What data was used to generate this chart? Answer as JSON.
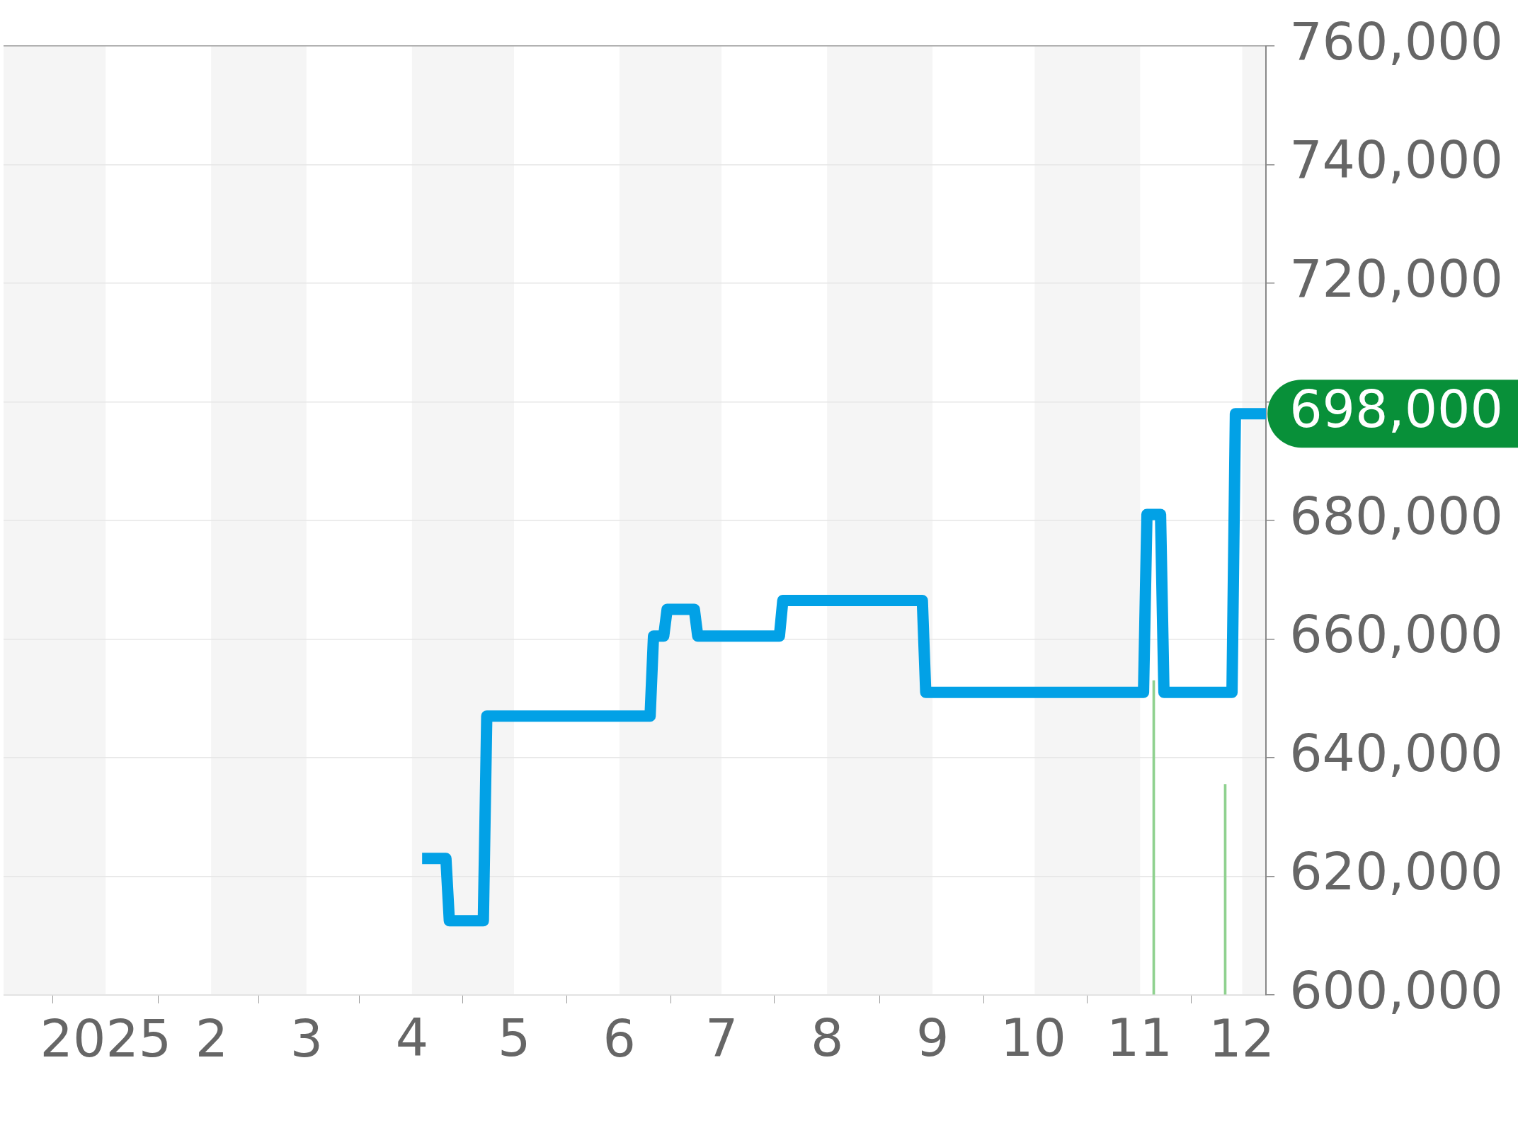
{
  "chart_data": {
    "type": "line",
    "series": [
      {
        "color": "#02a1e6",
        "x": [
          "2025-04-04",
          "2025-04-11",
          "2025-04-12",
          "2025-04-22",
          "2025-04-23",
          "2025-06-10",
          "2025-06-11",
          "2025-06-14",
          "2025-06-15",
          "2025-06-23",
          "2025-06-24",
          "2025-07-18",
          "2025-07-19",
          "2025-08-29",
          "2025-08-30",
          "2025-11-02",
          "2025-11-03",
          "2025-11-07",
          "2025-11-08",
          "2025-11-28",
          "2025-11-29",
          "2025-12-08"
        ],
        "values": [
          623000,
          623000,
          612500,
          612500,
          647000,
          647000,
          660500,
          660500,
          665000,
          665000,
          660500,
          660500,
          666500,
          666500,
          651000,
          651000,
          681000,
          681000,
          651000,
          651000,
          698000,
          698000
        ]
      },
      {
        "type": "bar",
        "color": "#8fd18f",
        "x": [
          "2025-11-05",
          "2025-11-26"
        ],
        "values": [
          653000,
          635500
        ]
      }
    ],
    "xlim": [
      "2024-12-02",
      "2025-12-08"
    ],
    "xticks": [
      {
        "value": "2025-01-01",
        "label": "2025"
      },
      {
        "value": "2025-02-01",
        "label": "2"
      },
      {
        "value": "2025-03-01",
        "label": "3"
      },
      {
        "value": "2025-04-01",
        "label": "4"
      },
      {
        "value": "2025-05-01",
        "label": "5"
      },
      {
        "value": "2025-06-01",
        "label": "6"
      },
      {
        "value": "2025-07-01",
        "label": "7"
      },
      {
        "value": "2025-08-01",
        "label": "8"
      },
      {
        "value": "2025-09-01",
        "label": "9"
      },
      {
        "value": "2025-10-01",
        "label": "10"
      },
      {
        "value": "2025-11-01",
        "label": "11"
      },
      {
        "value": "2025-12-01",
        "label": "12"
      }
    ],
    "ylim": [
      600000,
      760000
    ],
    "yticks": [
      {
        "value": 600000,
        "label": "600,000"
      },
      {
        "value": 620000,
        "label": "620,000"
      },
      {
        "value": 640000,
        "label": "640,000"
      },
      {
        "value": 660000,
        "label": "660,000"
      },
      {
        "value": 680000,
        "label": "680,000"
      },
      {
        "value": 700000,
        "label": null
      },
      {
        "value": 720000,
        "label": "720,000"
      },
      {
        "value": 740000,
        "label": "740,000"
      },
      {
        "value": 760000,
        "label": "760,000"
      }
    ],
    "grid": "y",
    "marker": "none",
    "line_style": "solid",
    "bands": [
      {
        "axis": "x",
        "from": "2024-12-02",
        "to": "2025-01-01",
        "color": "#f5f5f5"
      },
      {
        "axis": "x",
        "from": "2025-02-01",
        "to": "2025-03-01",
        "color": "#f5f5f5"
      },
      {
        "axis": "x",
        "from": "2025-04-01",
        "to": "2025-05-01",
        "color": "#f5f5f5"
      },
      {
        "axis": "x",
        "from": "2025-06-01",
        "to": "2025-07-01",
        "color": "#f5f5f5"
      },
      {
        "axis": "x",
        "from": "2025-08-01",
        "to": "2025-09-01",
        "color": "#f5f5f5"
      },
      {
        "axis": "x",
        "from": "2025-10-01",
        "to": "2025-11-01",
        "color": "#f5f5f5"
      },
      {
        "axis": "x",
        "from": "2025-12-01",
        "to": "2025-12-08",
        "color": "#f5f5f5"
      }
    ],
    "annotations": [
      {
        "text": "698,000",
        "x": "2025-12-08",
        "y": 698000
      }
    ]
  }
}
